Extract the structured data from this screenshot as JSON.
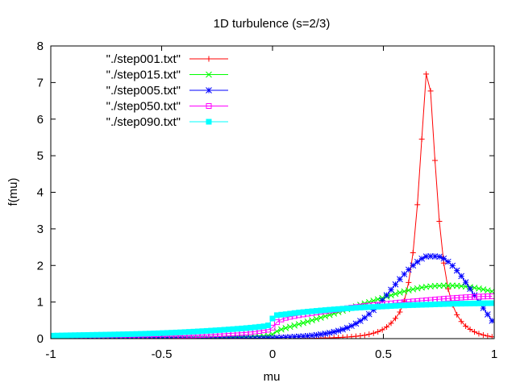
{
  "chart_data": {
    "type": "line",
    "title": "1D turbulence (s=2/3)",
    "xlabel": "mu",
    "ylabel": "f(mu)",
    "xlim": [
      -1,
      1
    ],
    "ylim": [
      0,
      8
    ],
    "xticks": [
      -1,
      -0.5,
      0,
      0.5,
      1
    ],
    "xtick_labels": [
      "-1",
      "-0.5",
      "0",
      "0.5",
      "1"
    ],
    "yticks": [
      0,
      1,
      2,
      3,
      4,
      5,
      6,
      7,
      8
    ],
    "ytick_labels": [
      "0",
      "1",
      "2",
      "3",
      "4",
      "5",
      "6",
      "7",
      "8"
    ],
    "grid": false,
    "legend_position": "top-left",
    "series": [
      {
        "name": "\"./step001.txt\"",
        "color": "#ff0000",
        "marker": "plus",
        "points": [
          [
            -1,
            0
          ],
          [
            -0.5,
            0
          ],
          [
            0,
            0
          ],
          [
            0.1,
            0
          ],
          [
            0.2,
            0.01
          ],
          [
            0.3,
            0.03
          ],
          [
            0.35,
            0.05
          ],
          [
            0.4,
            0.08
          ],
          [
            0.45,
            0.14
          ],
          [
            0.5,
            0.26
          ],
          [
            0.55,
            0.52
          ],
          [
            0.58,
            0.8
          ],
          [
            0.6,
            1.16
          ],
          [
            0.62,
            1.75
          ],
          [
            0.64,
            2.7
          ],
          [
            0.66,
            4.2
          ],
          [
            0.68,
            6.1
          ],
          [
            0.69,
            7.0
          ],
          [
            0.7,
            7.55
          ],
          [
            0.71,
            7.0
          ],
          [
            0.72,
            6.1
          ],
          [
            0.74,
            4.2
          ],
          [
            0.76,
            2.7
          ],
          [
            0.78,
            1.75
          ],
          [
            0.8,
            1.16
          ],
          [
            0.82,
            0.8
          ],
          [
            0.85,
            0.48
          ],
          [
            0.9,
            0.22
          ],
          [
            0.95,
            0.1
          ],
          [
            1,
            0.04
          ]
        ]
      },
      {
        "name": "\"./step015.txt\"",
        "color": "#00ff00",
        "marker": "x",
        "points": [
          [
            -1,
            0
          ],
          [
            -0.5,
            0.01
          ],
          [
            -0.2,
            0.03
          ],
          [
            -0.05,
            0.06
          ],
          [
            0,
            0.12
          ],
          [
            0.02,
            0.2
          ],
          [
            0.1,
            0.36
          ],
          [
            0.2,
            0.54
          ],
          [
            0.3,
            0.73
          ],
          [
            0.4,
            0.93
          ],
          [
            0.5,
            1.12
          ],
          [
            0.6,
            1.3
          ],
          [
            0.7,
            1.42
          ],
          [
            0.8,
            1.45
          ],
          [
            0.9,
            1.4
          ],
          [
            1,
            1.28
          ]
        ]
      },
      {
        "name": "\"./step005.txt\"",
        "color": "#0000ff",
        "marker": "star",
        "points": [
          [
            -1,
            0
          ],
          [
            -0.5,
            0
          ],
          [
            -0.1,
            0.01
          ],
          [
            0,
            0.02
          ],
          [
            0.1,
            0.05
          ],
          [
            0.2,
            0.1
          ],
          [
            0.3,
            0.22
          ],
          [
            0.35,
            0.33
          ],
          [
            0.4,
            0.5
          ],
          [
            0.45,
            0.75
          ],
          [
            0.5,
            1.08
          ],
          [
            0.55,
            1.45
          ],
          [
            0.6,
            1.8
          ],
          [
            0.65,
            2.08
          ],
          [
            0.7,
            2.25
          ],
          [
            0.75,
            2.24
          ],
          [
            0.8,
            2.06
          ],
          [
            0.85,
            1.72
          ],
          [
            0.9,
            1.28
          ],
          [
            0.95,
            0.84
          ],
          [
            1,
            0.4
          ]
        ]
      },
      {
        "name": "\"./step050.txt\"",
        "color": "#ff00ff",
        "marker": "square",
        "points": [
          [
            -1,
            0.02
          ],
          [
            -0.5,
            0.06
          ],
          [
            -0.2,
            0.14
          ],
          [
            -0.05,
            0.22
          ],
          [
            0,
            0.3
          ],
          [
            0.02,
            0.45
          ],
          [
            0.05,
            0.55
          ],
          [
            0.1,
            0.62
          ],
          [
            0.2,
            0.72
          ],
          [
            0.3,
            0.8
          ],
          [
            0.4,
            0.88
          ],
          [
            0.5,
            0.94
          ],
          [
            0.6,
            1.0
          ],
          [
            0.7,
            1.05
          ],
          [
            0.8,
            1.1
          ],
          [
            0.9,
            1.14
          ],
          [
            1,
            1.16
          ]
        ]
      },
      {
        "name": "\"./step090.txt\"",
        "color": "#00ffff",
        "marker": "filled-square",
        "points": [
          [
            -1,
            0.08
          ],
          [
            -0.5,
            0.15
          ],
          [
            -0.2,
            0.25
          ],
          [
            -0.05,
            0.33
          ],
          [
            -0.01,
            0.4
          ],
          [
            0,
            0.55
          ],
          [
            0.01,
            0.62
          ],
          [
            0.05,
            0.66
          ],
          [
            0.1,
            0.7
          ],
          [
            0.2,
            0.76
          ],
          [
            0.3,
            0.81
          ],
          [
            0.4,
            0.85
          ],
          [
            0.5,
            0.88
          ],
          [
            0.6,
            0.91
          ],
          [
            0.7,
            0.93
          ],
          [
            0.8,
            0.95
          ],
          [
            0.9,
            0.96
          ],
          [
            1,
            0.97
          ]
        ]
      }
    ]
  }
}
